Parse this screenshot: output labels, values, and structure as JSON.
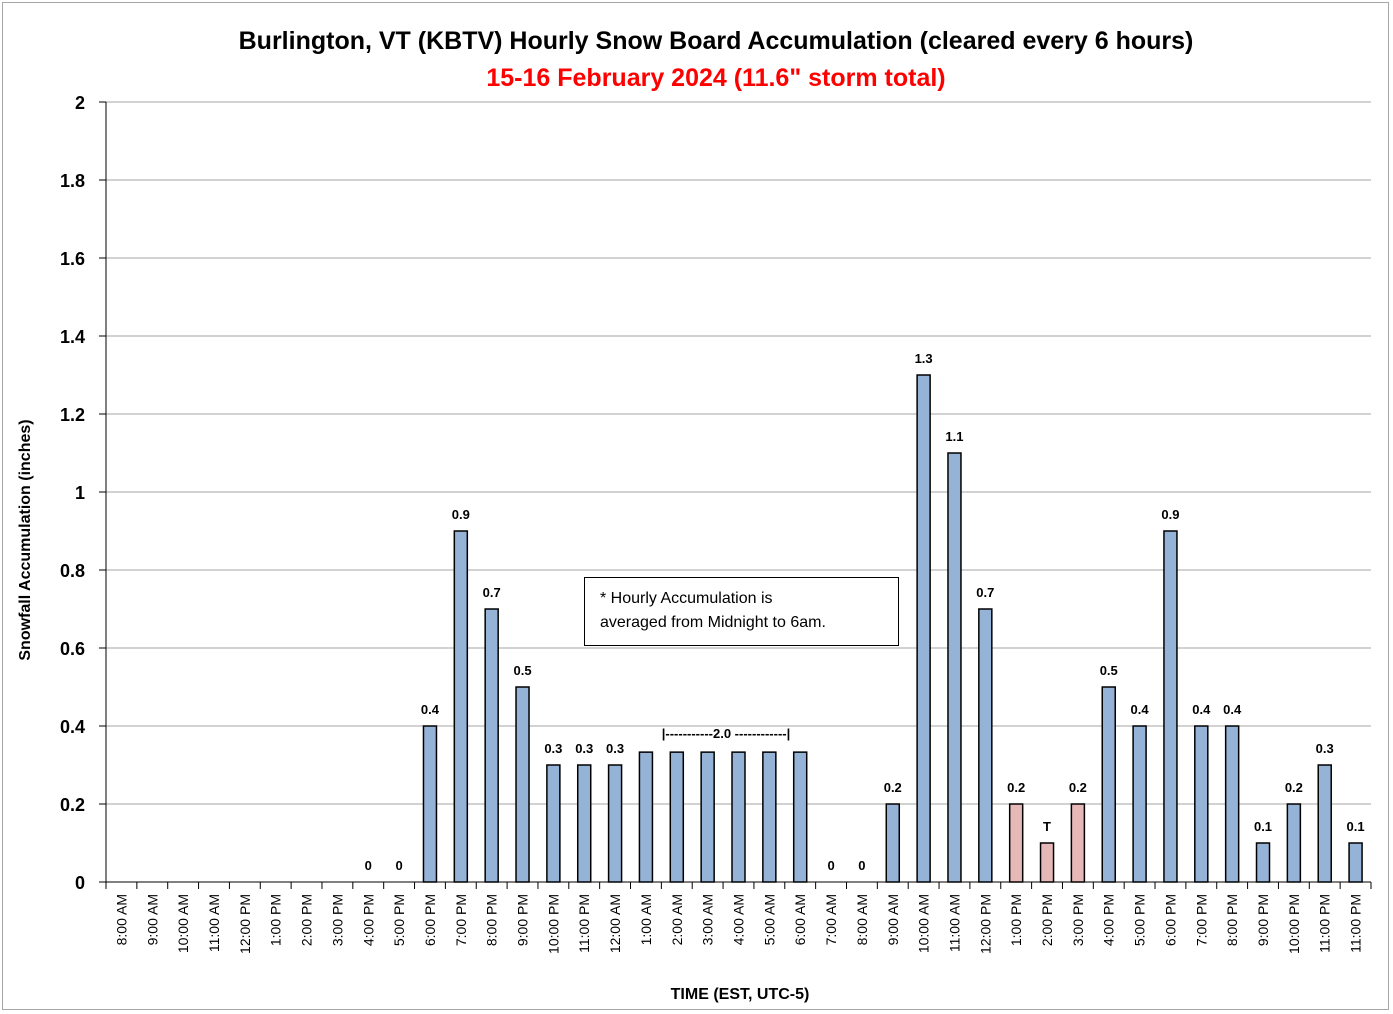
{
  "chart_data": {
    "type": "bar",
    "title": "Burlington, VT (KBTV) Hourly Snow Board Accumulation (cleared every 6 hours)",
    "subtitle": "15-16 February 2024 (11.6\" storm total)",
    "xlabel": "TIME (EST, UTC-5)",
    "ylabel": "Snowfall Accumulation (inches)",
    "ylim": [
      0,
      2
    ],
    "yticks": [
      "0",
      "0.2",
      "0.4",
      "0.6",
      "0.8",
      "1",
      "1.2",
      "1.4",
      "1.6",
      "1.8",
      "2"
    ],
    "grid": true,
    "categories": [
      "8:00 AM",
      "9:00 AM",
      "10:00 AM",
      "11:00 AM",
      "12:00 PM",
      "1:00 PM",
      "2:00 PM",
      "3:00 PM",
      "4:00 PM",
      "5:00 PM",
      "6:00 PM",
      "7:00 PM",
      "8:00 PM",
      "9:00 PM",
      "10:00 PM",
      "11:00 PM",
      "12:00 AM",
      "1:00 AM",
      "2:00 AM",
      "3:00 AM",
      "4:00 AM",
      "5:00 AM",
      "6:00 AM",
      "7:00 AM",
      "8:00 AM",
      "9:00 AM",
      "10:00 AM",
      "11:00 AM",
      "12:00 PM",
      "1:00 PM",
      "2:00 PM",
      "3:00 PM",
      "4:00 PM",
      "5:00 PM",
      "6:00 PM",
      "7:00 PM",
      "8:00 PM",
      "9:00 PM",
      "10:00 PM",
      "11:00 PM",
      "11:00 PM"
    ],
    "values": [
      null,
      null,
      null,
      null,
      null,
      null,
      null,
      null,
      0,
      0,
      0.4,
      0.9,
      0.7,
      0.5,
      0.3,
      0.3,
      0.3,
      0.333,
      0.333,
      0.333,
      0.333,
      0.333,
      0.333,
      0,
      0,
      0.2,
      1.3,
      1.1,
      0.7,
      0.2,
      0.1,
      0.2,
      0.5,
      0.4,
      0.9,
      0.4,
      0.4,
      0.1,
      0.2,
      0.3,
      0.1
    ],
    "data_labels": [
      "",
      "",
      "",
      "",
      "",
      "",
      "",
      "",
      "0",
      "0",
      "0.4",
      "0.9",
      "0.7",
      "0.5",
      "0.3",
      "0.3",
      "0.3",
      "",
      "",
      "",
      "",
      "",
      "",
      "0",
      "0",
      "0.2",
      "1.3",
      "1.1",
      "0.7",
      "0.2",
      "T",
      "0.2",
      "0.5",
      "0.4",
      "0.9",
      "0.4",
      "0.4",
      "0.1",
      "0.2",
      "0.3",
      "0.1"
    ],
    "highlight_indices": [
      29,
      30,
      31
    ],
    "colors": {
      "bar": "#95b3d7",
      "highlight": "#e6b9b8",
      "outline": "#000000",
      "grid": "#a6a6a6",
      "subtitle": "#ff0000"
    },
    "bracket_label": "|-----------2.0 ------------|",
    "annotation": [
      "* Hourly Accumulation is",
      "averaged from Midnight to 6am."
    ]
  }
}
